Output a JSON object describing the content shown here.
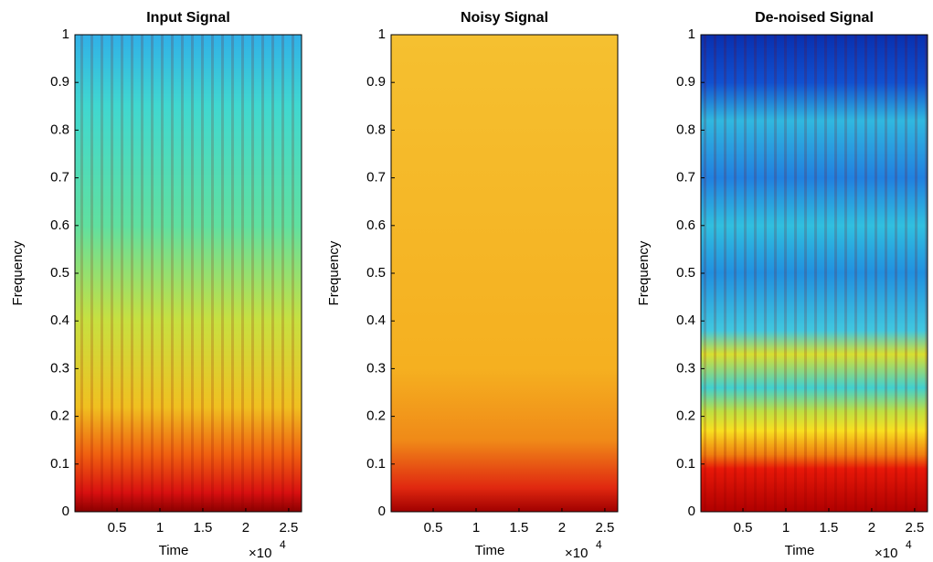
{
  "chart_data": [
    {
      "type": "spectrogram",
      "title": "Input  Signal",
      "xlabel": "Time",
      "ylabel": "Frequency",
      "x_multiplier": {
        "base": "×10",
        "exponent": 4
      },
      "xlim": [
        0.01,
        2.65
      ],
      "ylim": [
        0,
        1
      ],
      "xticks": [
        0.5,
        1,
        1.5,
        2,
        2.5
      ],
      "yticks": [
        0,
        0.1,
        0.2,
        0.3,
        0.4,
        0.5,
        0.6,
        0.7,
        0.8,
        0.9,
        1
      ],
      "fill": "g1"
    },
    {
      "type": "spectrogram",
      "title": "Noisy Signal",
      "xlabel": "Time",
      "ylabel": "Frequency",
      "x_multiplier": {
        "base": "×10",
        "exponent": 4
      },
      "xlim": [
        0.01,
        2.65
      ],
      "ylim": [
        0,
        1
      ],
      "xticks": [
        0.5,
        1,
        1.5,
        2,
        2.5
      ],
      "yticks": [
        0,
        0.1,
        0.2,
        0.3,
        0.4,
        0.5,
        0.6,
        0.7,
        0.8,
        0.9,
        1
      ],
      "fill": "g2"
    },
    {
      "type": "spectrogram",
      "title": "De-noised Signal",
      "xlabel": "Time",
      "ylabel": "Frequency",
      "x_multiplier": {
        "base": "×10",
        "exponent": 4
      },
      "xlim": [
        0.01,
        2.65
      ],
      "ylim": [
        0,
        1
      ],
      "xticks": [
        0.5,
        1,
        1.5,
        2,
        2.5
      ],
      "yticks": [
        0,
        0.1,
        0.2,
        0.3,
        0.4,
        0.5,
        0.6,
        0.7,
        0.8,
        0.9,
        1
      ],
      "fill": "g3"
    }
  ]
}
